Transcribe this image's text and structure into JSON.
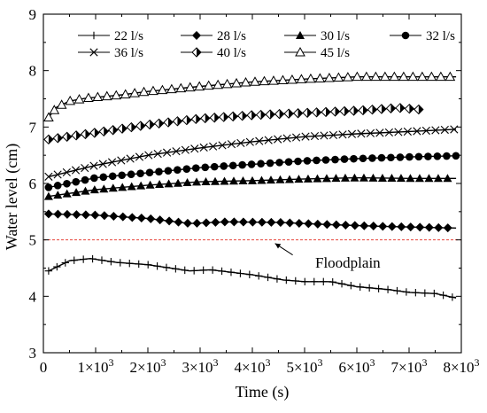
{
  "chart_data": {
    "type": "line",
    "title": "",
    "xlabel": "Time (s)",
    "ylabel": "Water level (cm)",
    "xlim": [
      0,
      8000
    ],
    "ylim": [
      3,
      9
    ],
    "x_ticks": [
      {
        "value": 0,
        "mantissa": "0",
        "exp": ""
      },
      {
        "value": 1000,
        "mantissa": "1×10",
        "exp": "3"
      },
      {
        "value": 2000,
        "mantissa": "2×10",
        "exp": "3"
      },
      {
        "value": 3000,
        "mantissa": "3×10",
        "exp": "3"
      },
      {
        "value": 4000,
        "mantissa": "4×10",
        "exp": "3"
      },
      {
        "value": 5000,
        "mantissa": "5×10",
        "exp": "3"
      },
      {
        "value": 6000,
        "mantissa": "6×10",
        "exp": "3"
      },
      {
        "value": 7000,
        "mantissa": "7×10",
        "exp": "3"
      },
      {
        "value": 8000,
        "mantissa": "8×10",
        "exp": "3"
      }
    ],
    "y_ticks": [
      "3",
      "4",
      "5",
      "6",
      "7",
      "8",
      "9"
    ],
    "grid": false,
    "legend_position": "top",
    "reference_line": {
      "y": 5,
      "color": "#e8453c",
      "style": "dashed"
    },
    "annotation": {
      "text": "Floodplain",
      "arrow_to": [
        4400,
        5.0
      ]
    },
    "series": [
      {
        "name": "22 l/s",
        "marker": "plus",
        "x": [
          100,
          500,
          900,
          1400,
          2000,
          2800,
          3200,
          4000,
          4600,
          5000,
          5500,
          6000,
          6600,
          7000,
          7500,
          7900
        ],
        "y": [
          4.45,
          4.63,
          4.67,
          4.6,
          4.56,
          4.45,
          4.47,
          4.38,
          4.29,
          4.26,
          4.26,
          4.17,
          4.12,
          4.07,
          4.05,
          3.97
        ]
      },
      {
        "name": "28 l/s",
        "marker": "diamond",
        "x": [
          100,
          1000,
          2000,
          2800,
          3500,
          4500,
          5500,
          6500,
          7900
        ],
        "y": [
          5.46,
          5.44,
          5.38,
          5.29,
          5.32,
          5.31,
          5.27,
          5.24,
          5.21
        ]
      },
      {
        "name": "30 l/s",
        "marker": "triangle",
        "x": [
          100,
          1000,
          2000,
          3000,
          4000,
          5000,
          6000,
          7000,
          7900
        ],
        "y": [
          5.77,
          5.89,
          5.97,
          6.03,
          6.05,
          6.08,
          6.1,
          6.09,
          6.09
        ]
      },
      {
        "name": "32 l/s",
        "marker": "circle",
        "x": [
          100,
          1000,
          2000,
          3000,
          4000,
          5000,
          6000,
          7000,
          7900
        ],
        "y": [
          5.93,
          6.1,
          6.19,
          6.28,
          6.34,
          6.4,
          6.44,
          6.47,
          6.49
        ]
      },
      {
        "name": "36 l/s",
        "marker": "x",
        "x": [
          100,
          1000,
          2000,
          3000,
          4000,
          5000,
          6000,
          7000,
          7900
        ],
        "y": [
          6.12,
          6.32,
          6.5,
          6.63,
          6.74,
          6.83,
          6.88,
          6.92,
          6.96
        ]
      },
      {
        "name": "40 l/s",
        "marker": "halfdiamond",
        "x": [
          100,
          1000,
          2000,
          3000,
          4000,
          5000,
          6000,
          6800,
          7200
        ],
        "y": [
          6.78,
          6.9,
          7.04,
          7.15,
          7.21,
          7.25,
          7.29,
          7.34,
          7.31
        ]
      },
      {
        "name": "45 l/s",
        "marker": "opentriangle",
        "x": [
          100,
          250,
          500,
          800,
          1500,
          2000,
          3000,
          4000,
          5000,
          6000,
          7000,
          7900
        ],
        "y": [
          7.17,
          7.35,
          7.46,
          7.51,
          7.57,
          7.63,
          7.72,
          7.8,
          7.85,
          7.89,
          7.89,
          7.89
        ]
      }
    ]
  }
}
